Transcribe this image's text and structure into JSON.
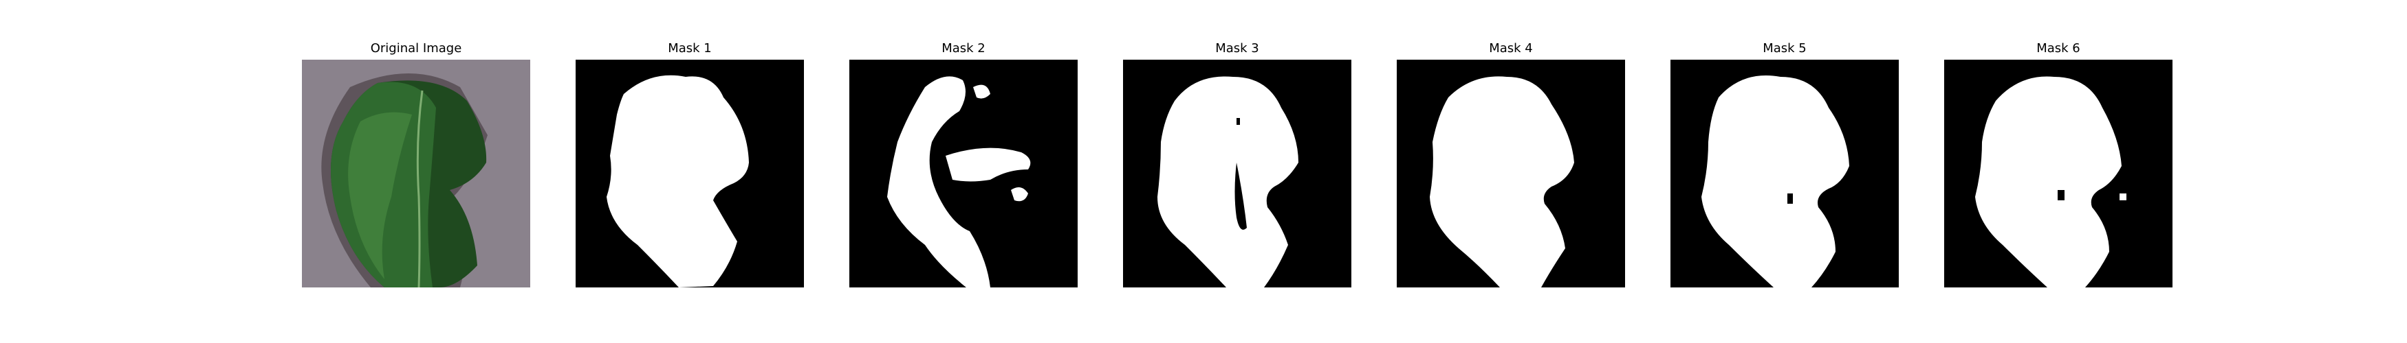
{
  "figure": {
    "panels": [
      {
        "title": "Original Image",
        "kind": "photo",
        "icon": "leaf-photo"
      },
      {
        "title": "Mask 1",
        "kind": "mask",
        "icon": "segmentation-mask"
      },
      {
        "title": "Mask 2",
        "kind": "mask",
        "icon": "segmentation-mask"
      },
      {
        "title": "Mask 3",
        "kind": "mask",
        "icon": "segmentation-mask"
      },
      {
        "title": "Mask 4",
        "kind": "mask",
        "icon": "segmentation-mask"
      },
      {
        "title": "Mask 5",
        "kind": "mask",
        "icon": "segmentation-mask"
      },
      {
        "title": "Mask 6",
        "kind": "mask",
        "icon": "segmentation-mask"
      }
    ],
    "colors": {
      "background": "#ffffff",
      "photo_background": "#8d8590",
      "leaf_dark": "#1f4a1f",
      "leaf_mid": "#2f6a2f",
      "leaf_light": "#4f8f45",
      "mask_background": "#000000",
      "mask_foreground": "#ffffff"
    }
  }
}
